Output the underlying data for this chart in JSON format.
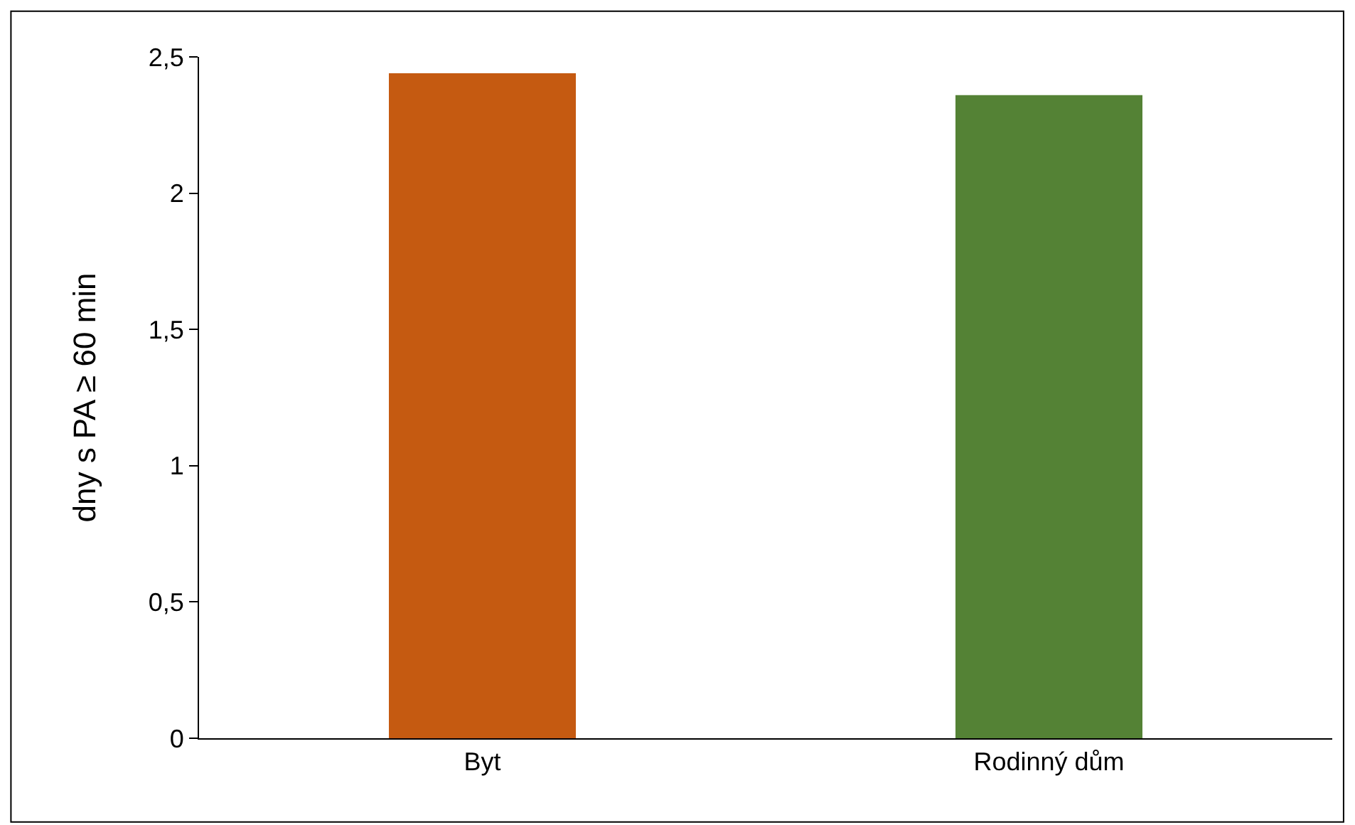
{
  "chart_data": {
    "type": "bar",
    "ylabel": "dny s PA ≥ 60 min",
    "categories": [
      "Byt",
      "Rodinný dům"
    ],
    "values": [
      2.44,
      2.36
    ],
    "colors": [
      "#c55a11",
      "#548235"
    ],
    "ylim": [
      0,
      2.5
    ],
    "yticks": [
      0,
      {
        "value": 0.5,
        "label": "0,5"
      },
      1,
      {
        "value": 1.5,
        "label": "1,5"
      },
      2,
      {
        "value": 2.5,
        "label": "2,5"
      }
    ]
  }
}
